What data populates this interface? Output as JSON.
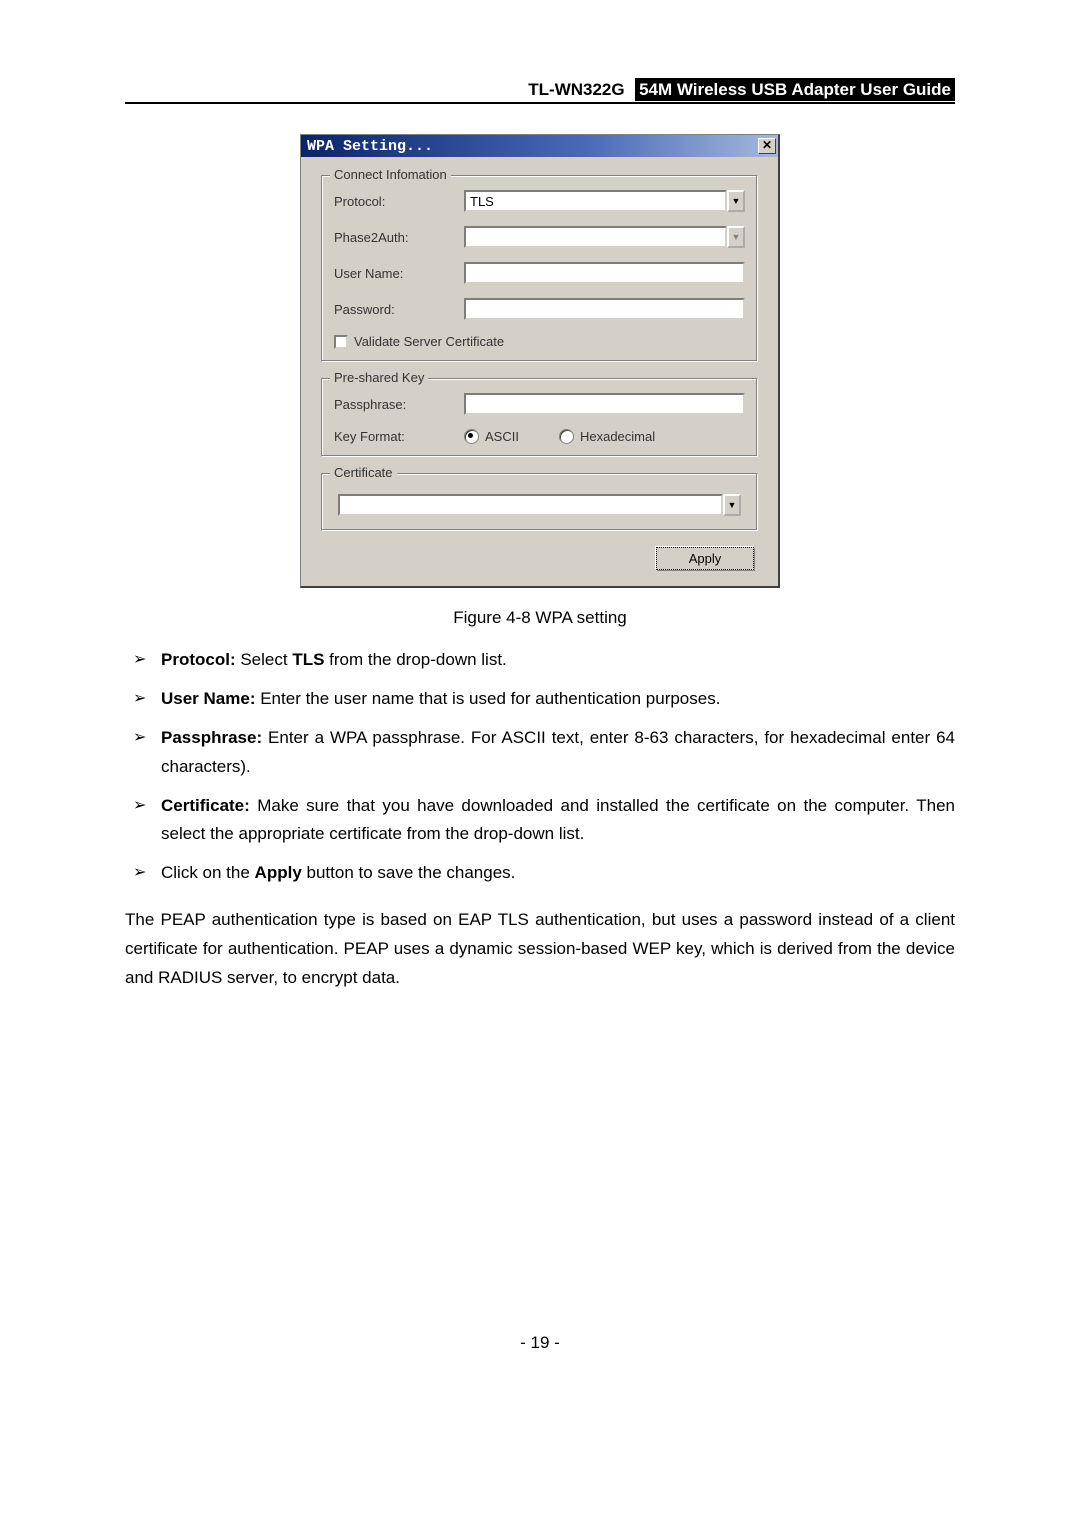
{
  "header": {
    "model": "TL-WN322G",
    "title": "54M Wireless USB Adapter User Guide"
  },
  "dialog": {
    "title": "WPA Setting...",
    "close_glyph": "✕",
    "group1": {
      "legend": "Connect Infomation",
      "protocol_label": "Protocol:",
      "protocol_value": "TLS",
      "phase2_label": "Phase2Auth:",
      "phase2_value": "",
      "username_label": "User Name:",
      "username_value": "",
      "password_label": "Password:",
      "password_value": "",
      "validate_label": "Validate Server Certificate"
    },
    "group2": {
      "legend": "Pre-shared Key",
      "passphrase_label": "Passphrase:",
      "passphrase_value": "",
      "keyformat_label": "Key Format:",
      "radio_ascii": "ASCII",
      "radio_hex": "Hexadecimal"
    },
    "group3": {
      "legend": "Certificate",
      "cert_value": ""
    },
    "apply": "Apply",
    "dropdown_glyph": "▼"
  },
  "caption": "Figure 4-8 WPA setting",
  "bullets": {
    "b0_lead": "Protocol:",
    "b0_mid": " Select ",
    "b0_bold": "TLS",
    "b0_tail": " from the drop-down list.",
    "b1_lead": "User Name:",
    "b1_tail": " Enter the user name that is used for authentication purposes.",
    "b2_lead": "Passphrase:",
    "b2_tail": " Enter a WPA passphrase. For ASCII text, enter 8-63 characters, for hexadecimal enter 64 characters).",
    "b3_lead": "Certificate:",
    "b3_tail": " Make sure that you have downloaded and installed the certificate on the computer. Then select the appropriate certificate from the drop-down list.",
    "b4_pre": "Click on the ",
    "b4_bold": "Apply",
    "b4_post": " button to save the changes."
  },
  "para": "The PEAP authentication type is based on EAP TLS authentication, but uses a password instead of a client certificate for authentication. PEAP uses a dynamic session-based WEP key, which is derived from the device and RADIUS server, to encrypt data.",
  "page_number": "- 19 -"
}
